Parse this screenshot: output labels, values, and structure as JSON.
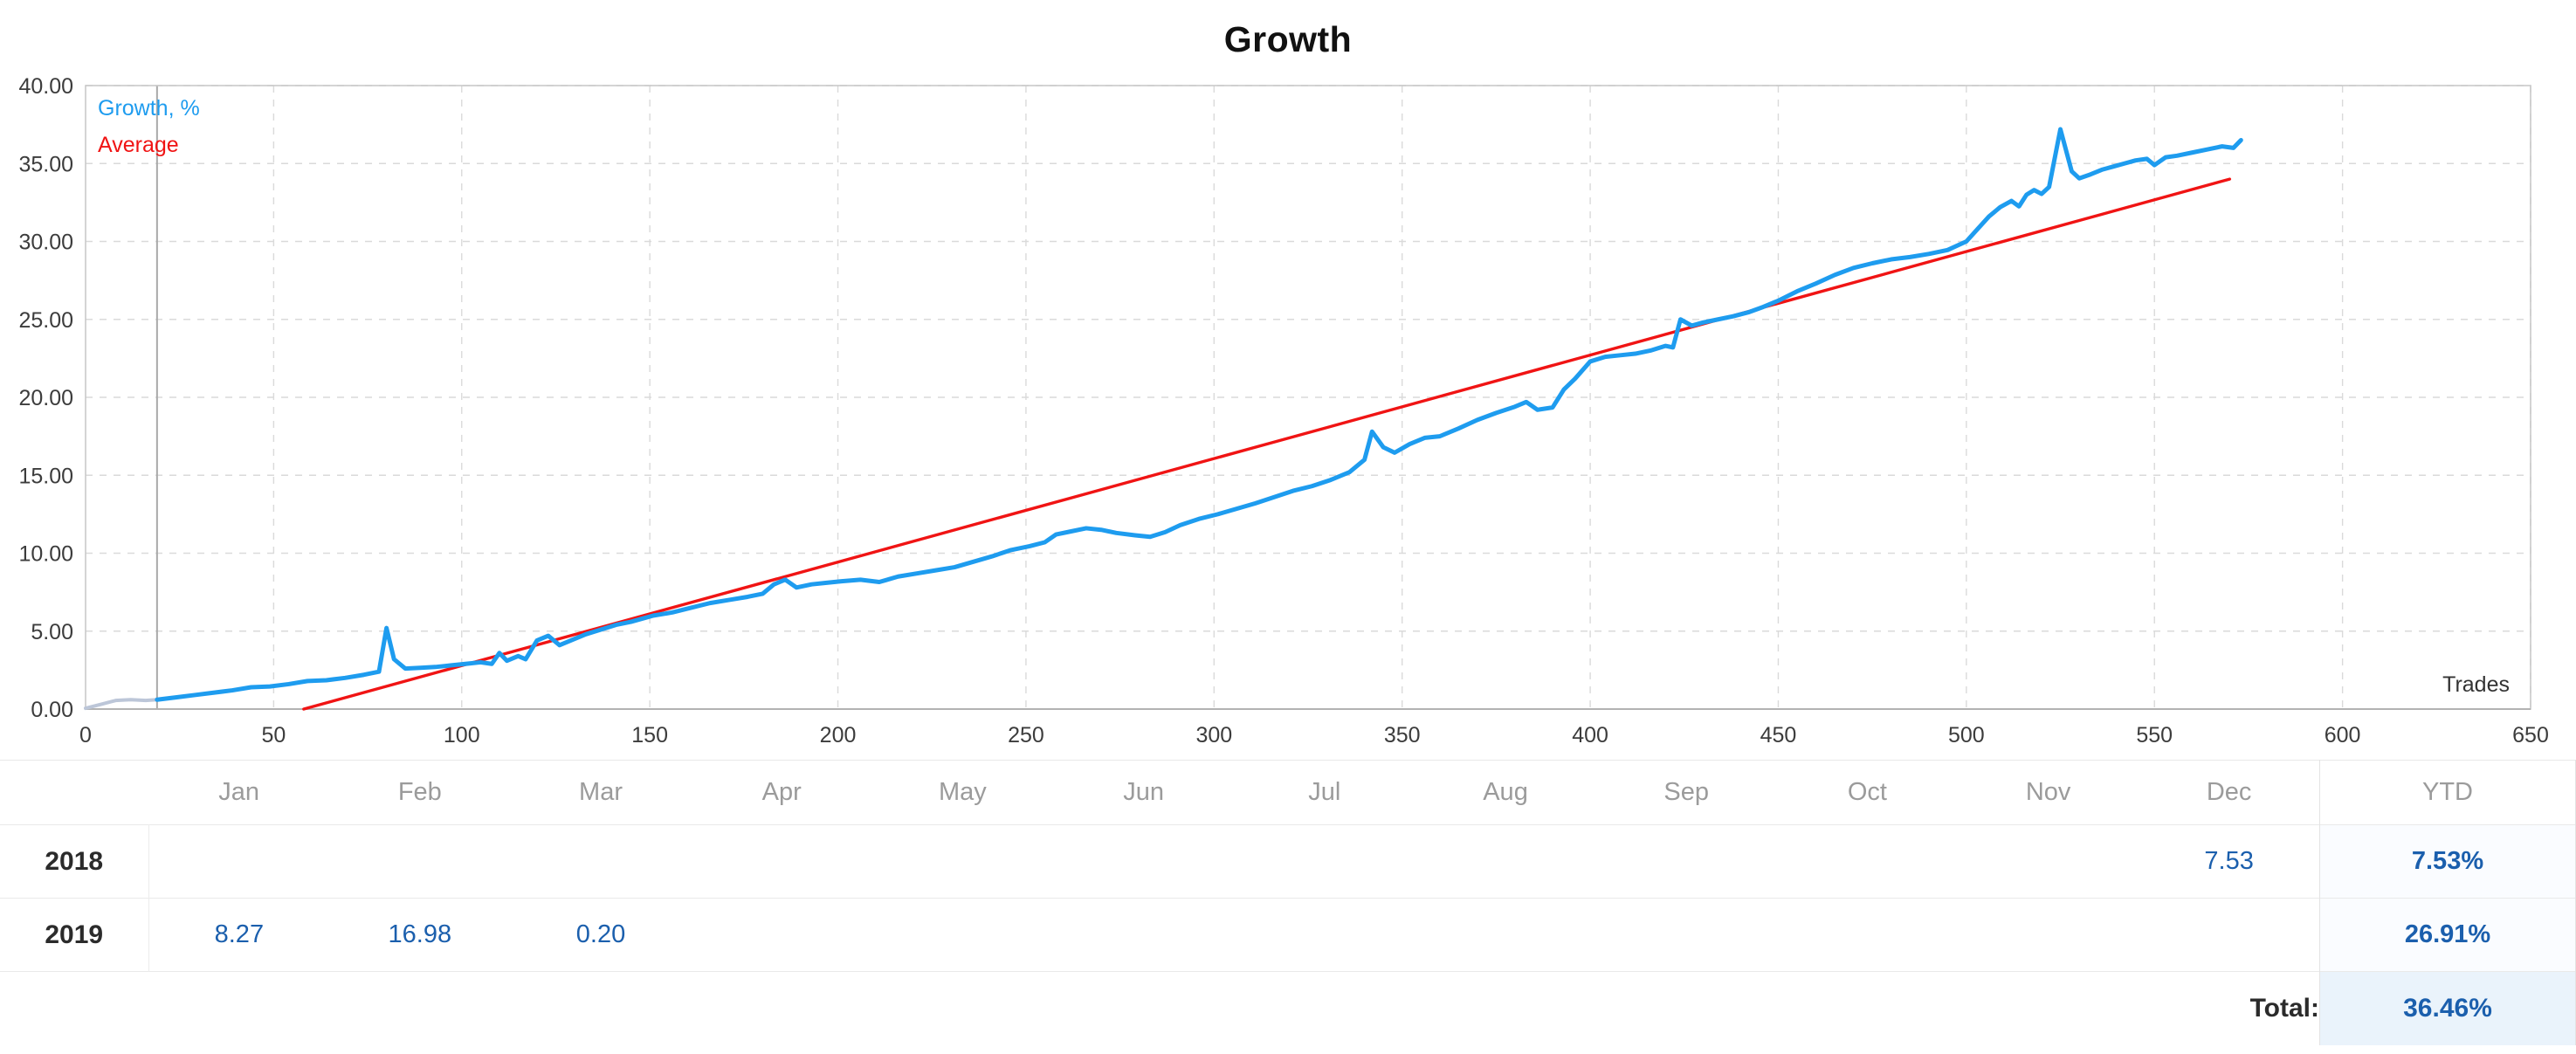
{
  "title": "Growth",
  "chart_data": {
    "type": "line",
    "title": "Growth",
    "xlabel": "Trades",
    "ylabel": "Growth, %",
    "xlim": [
      0,
      650
    ],
    "ylim": [
      0,
      40
    ],
    "grid": true,
    "legend_position": "top-left",
    "x_ticks": [
      0,
      50,
      100,
      150,
      200,
      250,
      300,
      350,
      400,
      450,
      500,
      550,
      600,
      650
    ],
    "y_ticks": [
      0,
      5,
      10,
      15,
      20,
      25,
      30,
      35,
      40
    ],
    "y_tick_labels": [
      "0.00",
      "5.00",
      "10.00",
      "15.00",
      "20.00",
      "25.00",
      "30.00",
      "35.00",
      "40.00"
    ],
    "start_marker_x": 19,
    "preview": {
      "until": 19,
      "color": "#bcc6d8"
    },
    "series": [
      {
        "name": "Growth, %",
        "color": "#1e9cef",
        "points": [
          [
            0,
            0.05
          ],
          [
            4,
            0.3
          ],
          [
            8,
            0.55
          ],
          [
            12,
            0.6
          ],
          [
            16,
            0.55
          ],
          [
            19,
            0.6
          ],
          [
            24,
            0.75
          ],
          [
            29,
            0.9
          ],
          [
            34,
            1.05
          ],
          [
            39,
            1.2
          ],
          [
            44,
            1.4
          ],
          [
            49,
            1.45
          ],
          [
            54,
            1.6
          ],
          [
            59,
            1.8
          ],
          [
            64,
            1.85
          ],
          [
            69,
            2.0
          ],
          [
            74,
            2.2
          ],
          [
            78,
            2.4
          ],
          [
            80,
            5.2
          ],
          [
            82,
            3.2
          ],
          [
            85,
            2.6
          ],
          [
            89,
            2.65
          ],
          [
            93,
            2.7
          ],
          [
            97,
            2.8
          ],
          [
            101,
            2.9
          ],
          [
            105,
            3.0
          ],
          [
            108,
            2.9
          ],
          [
            110,
            3.6
          ],
          [
            112,
            3.1
          ],
          [
            115,
            3.4
          ],
          [
            117,
            3.2
          ],
          [
            120,
            4.4
          ],
          [
            123,
            4.7
          ],
          [
            126,
            4.1
          ],
          [
            129,
            4.4
          ],
          [
            133,
            4.8
          ],
          [
            137,
            5.1
          ],
          [
            141,
            5.4
          ],
          [
            145,
            5.6
          ],
          [
            148,
            5.8
          ],
          [
            151,
            6.0
          ],
          [
            156,
            6.2
          ],
          [
            161,
            6.5
          ],
          [
            166,
            6.8
          ],
          [
            171,
            7.0
          ],
          [
            176,
            7.2
          ],
          [
            180,
            7.4
          ],
          [
            183,
            8.0
          ],
          [
            186,
            8.3
          ],
          [
            189,
            7.8
          ],
          [
            193,
            8.0
          ],
          [
            197,
            8.1
          ],
          [
            201,
            8.2
          ],
          [
            206,
            8.3
          ],
          [
            211,
            8.15
          ],
          [
            216,
            8.5
          ],
          [
            221,
            8.7
          ],
          [
            226,
            8.9
          ],
          [
            231,
            9.1
          ],
          [
            236,
            9.45
          ],
          [
            241,
            9.8
          ],
          [
            246,
            10.2
          ],
          [
            251,
            10.45
          ],
          [
            255,
            10.7
          ],
          [
            258,
            11.2
          ],
          [
            262,
            11.4
          ],
          [
            266,
            11.6
          ],
          [
            270,
            11.5
          ],
          [
            274,
            11.3
          ],
          [
            279,
            11.15
          ],
          [
            283,
            11.05
          ],
          [
            287,
            11.35
          ],
          [
            291,
            11.8
          ],
          [
            296,
            12.2
          ],
          [
            301,
            12.5
          ],
          [
            306,
            12.85
          ],
          [
            311,
            13.2
          ],
          [
            316,
            13.6
          ],
          [
            321,
            14.0
          ],
          [
            326,
            14.3
          ],
          [
            331,
            14.7
          ],
          [
            336,
            15.2
          ],
          [
            340,
            16.0
          ],
          [
            342,
            17.8
          ],
          [
            345,
            16.8
          ],
          [
            348,
            16.45
          ],
          [
            352,
            17.0
          ],
          [
            356,
            17.4
          ],
          [
            360,
            17.5
          ],
          [
            365,
            18.0
          ],
          [
            370,
            18.55
          ],
          [
            375,
            19.0
          ],
          [
            380,
            19.4
          ],
          [
            383,
            19.7
          ],
          [
            386,
            19.2
          ],
          [
            390,
            19.35
          ],
          [
            393,
            20.5
          ],
          [
            396,
            21.2
          ],
          [
            400,
            22.3
          ],
          [
            404,
            22.6
          ],
          [
            408,
            22.7
          ],
          [
            412,
            22.8
          ],
          [
            416,
            23.0
          ],
          [
            420,
            23.3
          ],
          [
            422,
            23.2
          ],
          [
            424,
            25.0
          ],
          [
            427,
            24.6
          ],
          [
            430,
            24.8
          ],
          [
            434,
            25.0
          ],
          [
            438,
            25.2
          ],
          [
            442,
            25.45
          ],
          [
            446,
            25.8
          ],
          [
            450,
            26.2
          ],
          [
            455,
            26.8
          ],
          [
            460,
            27.3
          ],
          [
            465,
            27.85
          ],
          [
            470,
            28.3
          ],
          [
            475,
            28.6
          ],
          [
            480,
            28.85
          ],
          [
            485,
            29.0
          ],
          [
            490,
            29.2
          ],
          [
            495,
            29.45
          ],
          [
            500,
            30.0
          ],
          [
            503,
            30.8
          ],
          [
            506,
            31.6
          ],
          [
            509,
            32.2
          ],
          [
            512,
            32.6
          ],
          [
            514,
            32.25
          ],
          [
            516,
            33.0
          ],
          [
            518,
            33.3
          ],
          [
            520,
            33.05
          ],
          [
            522,
            33.5
          ],
          [
            525,
            37.2
          ],
          [
            528,
            34.5
          ],
          [
            530,
            34.05
          ],
          [
            533,
            34.3
          ],
          [
            536,
            34.6
          ],
          [
            539,
            34.8
          ],
          [
            542,
            35.0
          ],
          [
            545,
            35.2
          ],
          [
            548,
            35.3
          ],
          [
            550,
            34.9
          ],
          [
            553,
            35.4
          ],
          [
            556,
            35.5
          ],
          [
            560,
            35.7
          ],
          [
            564,
            35.9
          ],
          [
            568,
            36.1
          ],
          [
            571,
            36.0
          ],
          [
            573,
            36.5
          ]
        ]
      },
      {
        "name": "Average",
        "color": "#f01414",
        "points": [
          [
            58,
            0
          ],
          [
            570,
            34
          ]
        ]
      }
    ]
  },
  "table": {
    "month_headers": [
      "Jan",
      "Feb",
      "Mar",
      "Apr",
      "May",
      "Jun",
      "Jul",
      "Aug",
      "Sep",
      "Oct",
      "Nov",
      "Dec"
    ],
    "ytd_header": "YTD",
    "rows": [
      {
        "year": "2018",
        "months": [
          "",
          "",
          "",
          "",
          "",
          "",
          "",
          "",
          "",
          "",
          "",
          "7.53"
        ],
        "ytd": "7.53%"
      },
      {
        "year": "2019",
        "months": [
          "8.27",
          "16.98",
          "0.20",
          "",
          "",
          "",
          "",
          "",
          "",
          "",
          "",
          ""
        ],
        "ytd": "26.91%"
      }
    ],
    "total_label": "Total:",
    "total_value": "36.46%"
  }
}
